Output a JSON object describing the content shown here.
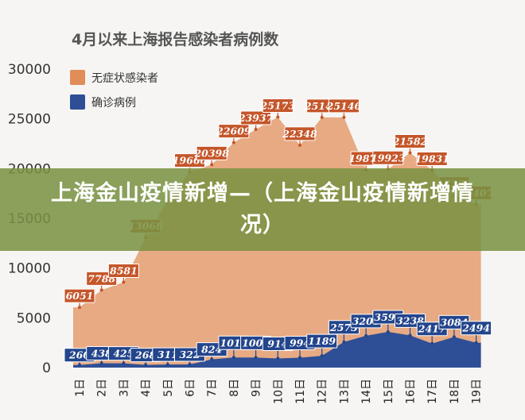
{
  "chart_data": {
    "type": "area",
    "title": "4月以来上海报告感染者病例数",
    "categories": [
      "1日",
      "2日",
      "3日",
      "4日",
      "5日",
      "6日",
      "7日",
      "8日",
      "9日",
      "10日",
      "11日",
      "12日",
      "13日",
      "14日",
      "15日",
      "16日",
      "17日",
      "18日",
      "19日"
    ],
    "ylim": [
      0,
      30000
    ],
    "yticks": [
      0,
      5000,
      10000,
      15000,
      20000,
      25000,
      30000
    ],
    "legend_position": "top-left",
    "grid": false,
    "series": [
      {
        "name": "无症状感染者",
        "color": "#e08d58",
        "label_color": "#c4562a",
        "values": [
          6051,
          7788,
          8581,
          13068,
          16766,
          19660,
          20398,
          22609,
          23937,
          25173,
          22348,
          25141,
          25146,
          19872,
          19923,
          21582,
          19831,
          17332,
          16407
        ]
      },
      {
        "name": "确诊病例",
        "color": "#2e4f96",
        "label_color": "#23458c",
        "values": [
          260,
          438,
          425,
          268,
          311,
          322,
          824,
          1015,
          1006,
          914,
          994,
          1189,
          2573,
          3200,
          3590,
          3238,
          2417,
          3084,
          2494
        ]
      }
    ],
    "data_labels": {
      "asymptomatic": [
        "6051",
        "7788",
        "8581",
        "13068",
        "",
        "19660",
        "20398",
        "22609",
        "23937",
        "25173",
        "22348",
        "25141",
        "25146",
        "19872",
        "19923",
        "21582",
        "19831",
        "17332",
        "16407"
      ],
      "confirmed": [
        "260",
        "438",
        "425",
        "268",
        "311",
        "322",
        "824",
        "1015",
        "1006",
        "914",
        "994",
        "1189",
        "2573",
        "3200",
        "3590",
        "3238",
        "2417",
        "3084",
        "2494"
      ]
    }
  },
  "overlay": {
    "headline": "上海金山疫情新增—（上海金山疫情新增情况）"
  }
}
